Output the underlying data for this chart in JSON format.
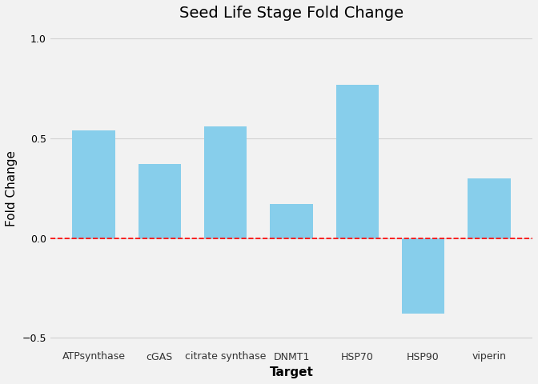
{
  "categories": [
    "ATPsynthase",
    "cGAS",
    "citrate synthase",
    "DNMT1",
    "HSP70",
    "HSP90",
    "viperin"
  ],
  "values": [
    0.54,
    0.37,
    0.56,
    0.17,
    0.77,
    -0.38,
    0.3
  ],
  "bar_color": "#87CEEB",
  "title": "Seed Life Stage Fold Change",
  "xlabel": "Target",
  "ylabel": "Fold Change",
  "ylim": [
    -0.55,
    1.05
  ],
  "yticks": [
    -0.5,
    0.0,
    0.5,
    1.0
  ],
  "hline_y": 0.0,
  "hline_color": "red",
  "hline_style": "--",
  "grid_color": "#d0d0d0",
  "background_color": "#f2f2f2",
  "title_fontsize": 14,
  "label_fontsize": 11,
  "tick_fontsize": 9,
  "bar_width": 0.65
}
